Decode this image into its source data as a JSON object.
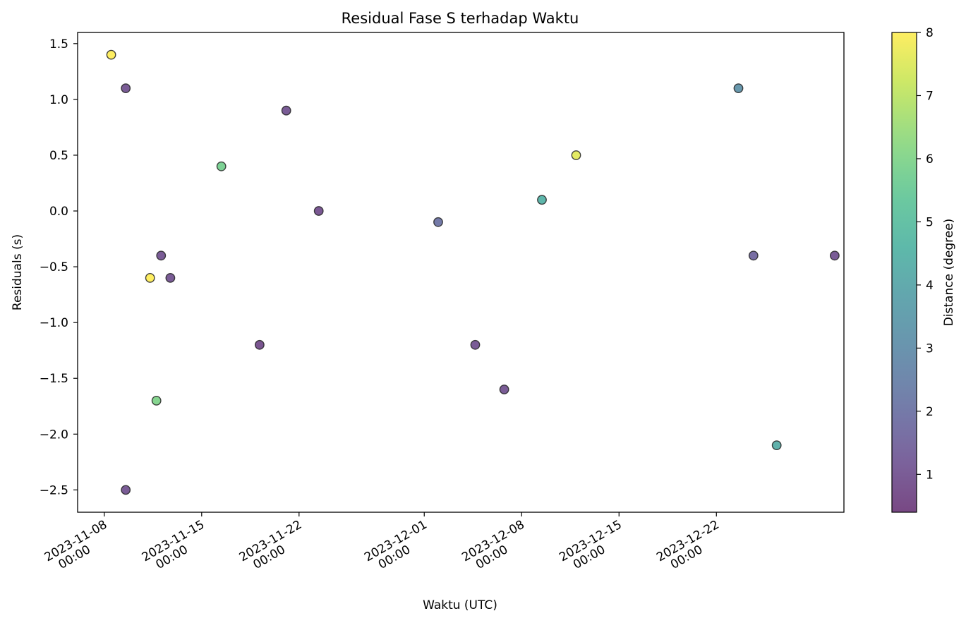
{
  "chart_data": {
    "type": "scatter",
    "title": "Residual Fase S terhadap Waktu",
    "xlabel": "Waktu (UTC)",
    "ylabel": "Residuals (s)",
    "x_ticks": [
      {
        "date": "2023-11-08",
        "line1": "2023-11-08",
        "line2": "00:00"
      },
      {
        "date": "2023-11-15",
        "line1": "2023-11-15",
        "line2": "00:00"
      },
      {
        "date": "2023-11-22",
        "line1": "2023-11-22",
        "line2": "00:00"
      },
      {
        "date": "2023-12-01",
        "line1": "2023-12-01",
        "line2": "00:00"
      },
      {
        "date": "2023-12-08",
        "line1": "2023-12-08",
        "line2": "00:00"
      },
      {
        "date": "2023-12-15",
        "line1": "2023-12-15",
        "line2": "00:00"
      },
      {
        "date": "2023-12-22",
        "line1": "2023-12-22",
        "line2": "00:00"
      }
    ],
    "xlim": [
      "2023-11-06 02:00",
      "2023-12-31 04:00"
    ],
    "ylim": [
      -2.7,
      1.6
    ],
    "y_ticks": [
      1.5,
      1.0,
      0.5,
      0.0,
      -0.5,
      -1.0,
      -1.5,
      -2.0,
      -2.5
    ],
    "y_tick_labels": [
      "1.5",
      "1.0",
      "0.5",
      "0.0",
      "−0.5",
      "−1.0",
      "−1.5",
      "−2.0",
      "−2.5"
    ],
    "colorbar": {
      "label": "Distance (degree)",
      "colormap": "viridis",
      "range": [
        0.4,
        8
      ],
      "ticks": [
        8,
        7,
        6,
        5,
        4,
        3,
        2,
        1
      ],
      "tick_labels": [
        "8",
        "7",
        "6",
        "5",
        "4",
        "3",
        "2",
        "1"
      ]
    },
    "points": [
      {
        "x": "2023-11-08 12:00",
        "y": 1.4,
        "distance": 8.0
      },
      {
        "x": "2023-11-09 13:00",
        "y": 1.1,
        "distance": 1.0
      },
      {
        "x": "2023-11-09 13:00",
        "y": -2.5,
        "distance": 1.0
      },
      {
        "x": "2023-11-11 07:00",
        "y": -0.6,
        "distance": 8.0
      },
      {
        "x": "2023-11-11 18:00",
        "y": -1.7,
        "distance": 6.0
      },
      {
        "x": "2023-11-12 02:00",
        "y": -0.4,
        "distance": 1.0
      },
      {
        "x": "2023-11-12 18:00",
        "y": -0.6,
        "distance": 1.0
      },
      {
        "x": "2023-11-16 10:00",
        "y": 0.4,
        "distance": 5.8
      },
      {
        "x": "2023-11-19 04:00",
        "y": -1.2,
        "distance": 0.8
      },
      {
        "x": "2023-11-21 02:00",
        "y": 0.9,
        "distance": 1.0
      },
      {
        "x": "2023-11-23 10:00",
        "y": 0.0,
        "distance": 0.9
      },
      {
        "x": "2023-12-02 00:00",
        "y": -0.1,
        "distance": 2.0
      },
      {
        "x": "2023-12-04 16:00",
        "y": -1.2,
        "distance": 1.0
      },
      {
        "x": "2023-12-06 18:00",
        "y": -1.6,
        "distance": 1.0
      },
      {
        "x": "2023-12-09 11:00",
        "y": 0.1,
        "distance": 4.5
      },
      {
        "x": "2023-12-11 22:00",
        "y": 0.5,
        "distance": 7.6
      },
      {
        "x": "2023-12-23 14:00",
        "y": 1.1,
        "distance": 3.2
      },
      {
        "x": "2023-12-24 16:00",
        "y": -0.4,
        "distance": 1.6
      },
      {
        "x": "2023-12-26 08:00",
        "y": -2.1,
        "distance": 4.3
      },
      {
        "x": "2023-12-30 12:00",
        "y": -0.4,
        "distance": 1.0
      }
    ]
  }
}
